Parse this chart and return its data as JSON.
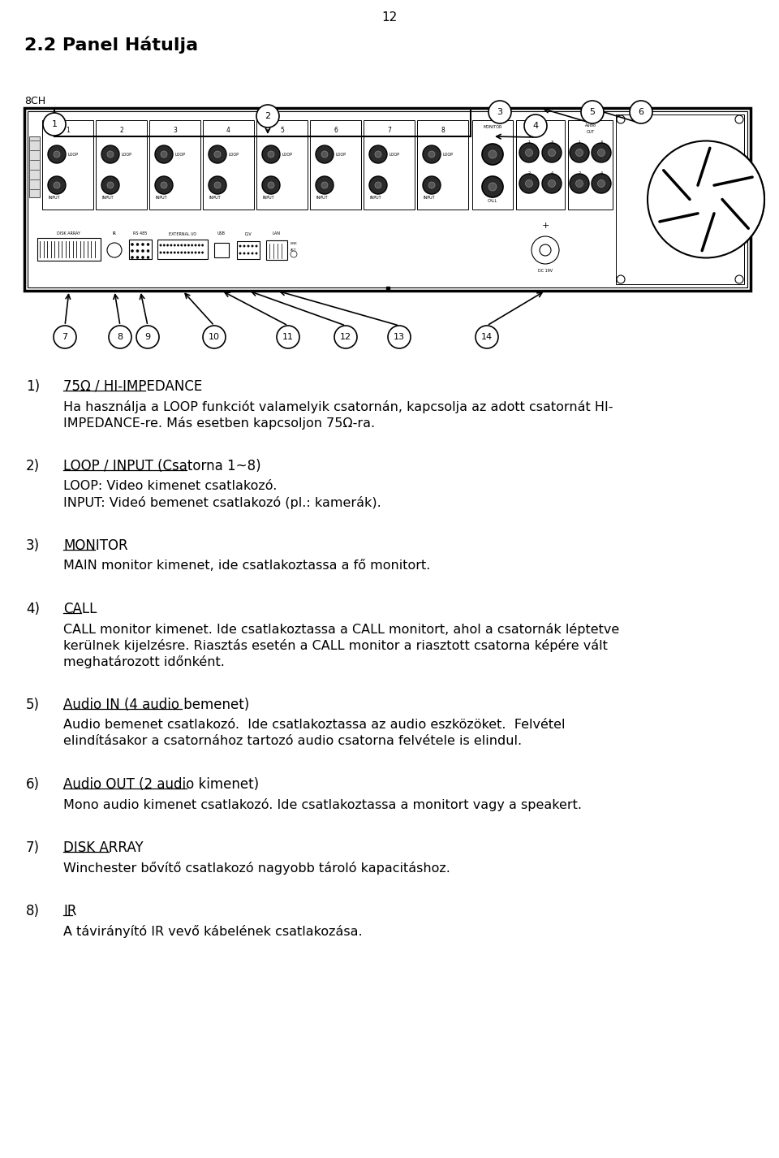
{
  "page_number": "12",
  "title": "2.2 Panel Hátulja",
  "label_8ch": "8CH",
  "background_color": "#ffffff",
  "text_color": "#000000",
  "items": [
    {
      "number": "1)",
      "heading": "75Ω / HI-IMPEDANCE",
      "underline": true,
      "body_lines": [
        "Ha használja a LOOP funkciót valamelyik csatornán, kapcsolja az adott csatornát HI-",
        "IMPEDANCE-re. Más esetben kapcsoljon 75Ω-ra."
      ]
    },
    {
      "number": "2)",
      "heading": "LOOP / INPUT (Csatorna 1~8)",
      "underline": true,
      "body_lines": [
        "LOOP: Video kimenet csatlakozó.",
        "INPUT: Videó bemenet csatlakozó (pl.: kamerák)."
      ]
    },
    {
      "number": "3)",
      "heading": "MONITOR",
      "underline": true,
      "body_lines": [
        "MAIN monitor kimenet, ide csatlakoztassa a fő monitort."
      ]
    },
    {
      "number": "4)",
      "heading": "CALL",
      "underline": true,
      "body_lines": [
        "CALL monitor kimenet. Ide csatlakoztassa a CALL monitort, ahol a csatornák léptetve",
        "kerülnek kijelzésre. Riasztás esetén a CALL monitor a riasztott csatorna képére vált",
        "meghatározott időnként."
      ]
    },
    {
      "number": "5)",
      "heading": "Audio IN (4 audio bemenet)",
      "underline": true,
      "body_lines": [
        "Audio bemenet csatlakozó.  Ide csatlakoztassa az audio eszközöket.  Felvétel",
        "elindításakor a csatornához tartozó audio csatorna felvétele is elindul."
      ]
    },
    {
      "number": "6)",
      "heading": "Audio OUT (2 audio kimenet)",
      "underline": true,
      "body_lines": [
        "Mono audio kimenet csatlakozó. Ide csatlakoztassa a monitort vagy a speakert."
      ]
    },
    {
      "number": "7)",
      "heading": "DISK ARRAY",
      "underline": true,
      "body_lines": [
        "Winchester bővítő csatlakozó nagyobb tároló kapacitáshoz."
      ]
    },
    {
      "number": "8)",
      "heading": "IR",
      "underline": true,
      "body_lines": [
        "A távirányító IR vevő kábelének csatlakozása."
      ]
    }
  ],
  "callout_top": [
    "1",
    "2",
    "3",
    "4",
    "5",
    "6"
  ],
  "callout_bottom": [
    "7",
    "8",
    "9",
    "10",
    "11",
    "12",
    "13",
    "14"
  ]
}
